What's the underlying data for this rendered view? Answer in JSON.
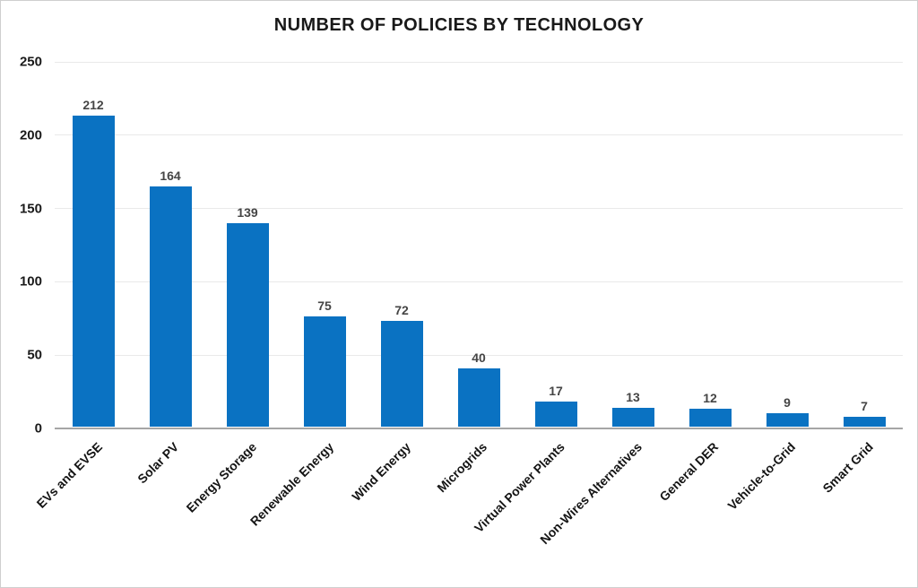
{
  "title": "NUMBER OF POLICIES BY TECHNOLOGY",
  "chart_data": {
    "type": "bar",
    "title": "NUMBER OF POLICIES BY TECHNOLOGY",
    "categories": [
      "EVs and EVSE",
      "Solar PV",
      "Energy Storage",
      "Renewable Energy",
      "Wind Energy",
      "Microgrids",
      "Virtual Power Plants",
      "Non-Wires Alternatives",
      "General DER",
      "Vehicle-to-Grid",
      "Smart Grid"
    ],
    "values": [
      212,
      164,
      139,
      75,
      72,
      40,
      17,
      13,
      12,
      9,
      7
    ],
    "xlabel": "",
    "ylabel": "",
    "ylim": [
      0,
      250
    ],
    "yticks": [
      0,
      50,
      100,
      150,
      200,
      250
    ],
    "grid": true,
    "legend": false,
    "value_labels_shown": true,
    "bar_color": "#0a72c2",
    "value_label_color": "#454545",
    "gridline_color": "#e9e9e9",
    "axis_line_color": "#a6a6a6",
    "tick_label_color": "#1a1a1a"
  }
}
